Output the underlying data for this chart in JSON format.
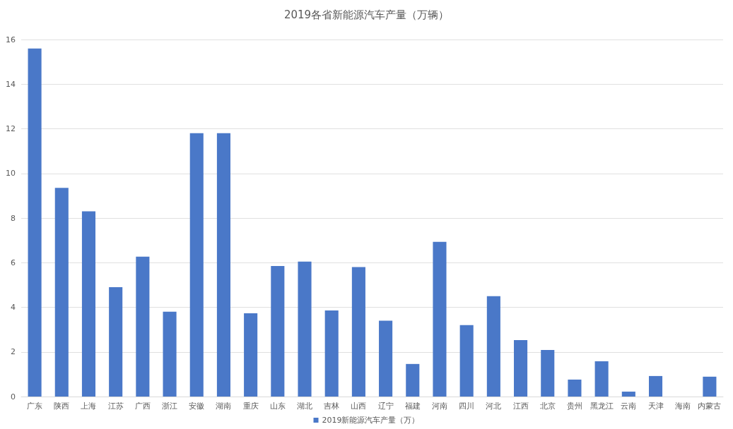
{
  "chart_data": {
    "type": "bar",
    "title": "2019各省新能源汽车产量（万辆）",
    "categories": [
      "广东",
      "陕西",
      "上海",
      "江苏",
      "广西",
      "浙江",
      "安徽",
      "湖南",
      "重庆",
      "山东",
      "湖北",
      "吉林",
      "山西",
      "辽宁",
      "福建",
      "河南",
      "四川",
      "河北",
      "江西",
      "北京",
      "贵州",
      "黑龙江",
      "云南",
      "天津",
      "海南",
      "内蒙古"
    ],
    "series": [
      {
        "name": "2019新能源汽车产量（万）",
        "color": "#4a78c8",
        "values": [
          15.6,
          9.35,
          8.3,
          4.9,
          6.27,
          3.8,
          11.8,
          11.8,
          3.73,
          5.85,
          6.05,
          3.86,
          5.8,
          3.4,
          1.46,
          6.93,
          3.2,
          4.5,
          2.53,
          2.09,
          0.76,
          1.58,
          0.22,
          0.92,
          0,
          0.89
        ]
      }
    ],
    "ylim": [
      0,
      16
    ],
    "yticks": [
      0,
      2,
      4,
      6,
      8,
      10,
      12,
      14,
      16
    ],
    "grid": "y",
    "legend": "bottom"
  }
}
